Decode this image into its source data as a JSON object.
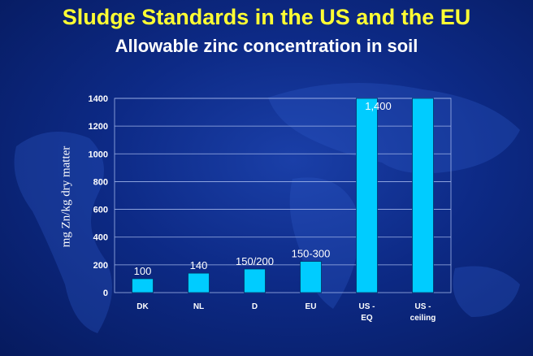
{
  "chart_data": {
    "type": "bar",
    "title": "Sludge Standards in the US and the EU",
    "subtitle": "Allowable zinc concentration in soil",
    "ylabel": "mg Zn/kg dry  matter",
    "xlabel": "",
    "categories": [
      [
        "DK"
      ],
      [
        "NL"
      ],
      [
        "D"
      ],
      [
        "EU"
      ],
      [
        "US -",
        "EQ"
      ],
      [
        "US -",
        "ceiling"
      ]
    ],
    "values": [
      100,
      140,
      170,
      225,
      1400,
      1400
    ],
    "data_labels": [
      "100",
      "140",
      "150/200",
      "150-300",
      "1,400",
      ""
    ],
    "ylim": [
      0,
      1400
    ],
    "yticks": [
      0,
      200,
      400,
      600,
      800,
      1000,
      1200,
      1400
    ],
    "grid": "horizontal",
    "bar_color": "#00ccff",
    "legend": "none"
  }
}
